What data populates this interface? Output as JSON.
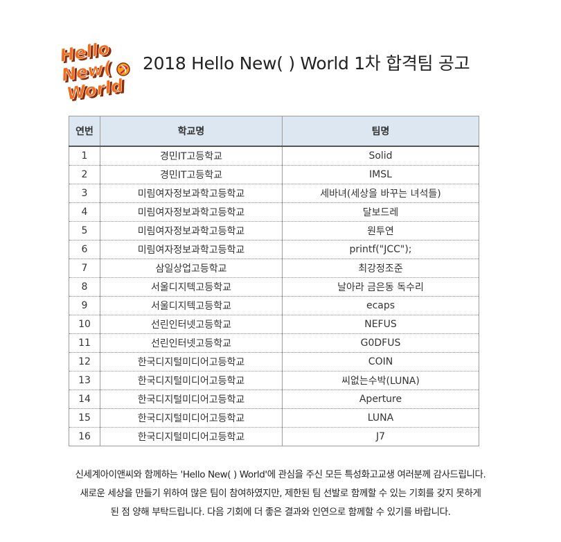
{
  "header": {
    "logo_lines": [
      "Hello",
      "New(",
      "World"
    ],
    "title": "2018 Hello New( ) World 1차 합격팀 공고"
  },
  "table": {
    "headers": {
      "no": "연번",
      "school": "학교명",
      "team": "팀명"
    },
    "rows": [
      {
        "no": "1",
        "school": "경민IT고등학교",
        "team": "Solid"
      },
      {
        "no": "2",
        "school": "경민IT고등학교",
        "team": "IMSL"
      },
      {
        "no": "3",
        "school": "미림여자정보과학고등학교",
        "team": "세바녀(세상을 바꾸는 녀석들)"
      },
      {
        "no": "4",
        "school": "미림여자정보과학고등학교",
        "team": "달보드레"
      },
      {
        "no": "5",
        "school": "미림여자정보과학고등학교",
        "team": "원투연"
      },
      {
        "no": "6",
        "school": "미림여자정보과학고등학교",
        "team": "printf(\"JCC\");"
      },
      {
        "no": "7",
        "school": "삼일상업고등학교",
        "team": "최강정조준"
      },
      {
        "no": "8",
        "school": "서울디지텍고등학교",
        "team": "날아라 금은동 독수리"
      },
      {
        "no": "9",
        "school": "서울디지텍고등학교",
        "team": "ecaps"
      },
      {
        "no": "10",
        "school": "선린인터넷고등학교",
        "team": "NEFUS"
      },
      {
        "no": "11",
        "school": "선린인터넷고등학교",
        "team": "G0DFUS"
      },
      {
        "no": "12",
        "school": "한국디지털미디어고등학교",
        "team": "COIN"
      },
      {
        "no": "13",
        "school": "한국디지털미디어고등학교",
        "team": "씨없는수박(LUNA)"
      },
      {
        "no": "14",
        "school": "한국디지털미디어고등학교",
        "team": "Aperture"
      },
      {
        "no": "15",
        "school": "한국디지털미디어고등학교",
        "team": "LUNA"
      },
      {
        "no": "16",
        "school": "한국디지털미디어고등학교",
        "team": "J7"
      }
    ]
  },
  "notice": {
    "line1": "신세계아이앤씨와 함께하는 'Hello New( ) World'에 관심을 주신 모든 특성화고교생 여러분께 감사드립니다.",
    "line2": "새로운 세상을 만들기 위하여 많은 팀이 참여하였지만, 제한된 팀 선발로 함께할 수 있는 기회를 갖지 못하게",
    "line3": "된 점 양해 부탁드립니다. 다음 기회에 더 좋은 결과와 인연으로 함께할 수 있기를 바랍니다."
  },
  "colors": {
    "logo_orange": "#f26b1d",
    "logo_shadow": "#8a2c0c",
    "header_fill": "#dde7f1"
  }
}
